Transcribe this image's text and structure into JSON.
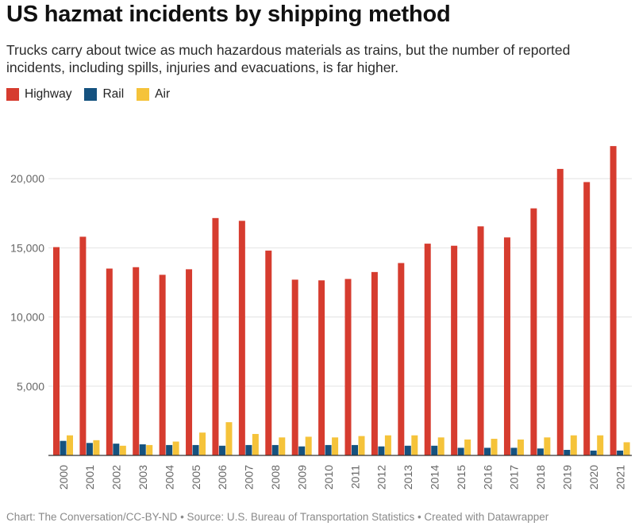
{
  "title": "US hazmat incidents by shipping method",
  "subtitle": "Trucks carry about twice as much hazardous materials as trains, but the number of reported incidents, including spills, injuries and evacuations, is far higher.",
  "footer": "Chart: The Conversation/CC-BY-ND • Source: U.S. Bureau of Transportation Statistics • Created with Datawrapper",
  "chart_data": {
    "type": "bar",
    "title": "US hazmat incidents by shipping method",
    "xlabel": "",
    "ylabel": "",
    "ylim": [
      0,
      22500
    ],
    "y_ticks": [
      5000,
      10000,
      15000,
      20000
    ],
    "y_tick_labels": [
      "5,000",
      "10,000",
      "15,000",
      "20,000"
    ],
    "grid": true,
    "legend_position": "top-left",
    "categories": [
      "2000",
      "2001",
      "2002",
      "2003",
      "2004",
      "2005",
      "2006",
      "2007",
      "2008",
      "2009",
      "2010",
      "2011",
      "2012",
      "2013",
      "2014",
      "2015",
      "2016",
      "2017",
      "2018",
      "2019",
      "2020",
      "2021"
    ],
    "series": [
      {
        "name": "Highway",
        "color": "#d63c2f",
        "values": [
          15050,
          15800,
          13500,
          13600,
          13050,
          13450,
          17150,
          16950,
          14800,
          12700,
          12650,
          12750,
          13250,
          13900,
          15300,
          15150,
          16550,
          15750,
          17850,
          20700,
          19750,
          22350
        ]
      },
      {
        "name": "Rail",
        "color": "#15527f",
        "values": [
          1050,
          900,
          850,
          800,
          750,
          750,
          700,
          750,
          750,
          650,
          750,
          750,
          650,
          700,
          700,
          550,
          550,
          550,
          500,
          400,
          350,
          350
        ]
      },
      {
        "name": "Air",
        "color": "#f5c33a",
        "values": [
          1450,
          1100,
          700,
          750,
          1000,
          1650,
          2400,
          1550,
          1300,
          1350,
          1300,
          1400,
          1450,
          1450,
          1300,
          1150,
          1200,
          1150,
          1300,
          1450,
          1450,
          950
        ]
      }
    ]
  }
}
